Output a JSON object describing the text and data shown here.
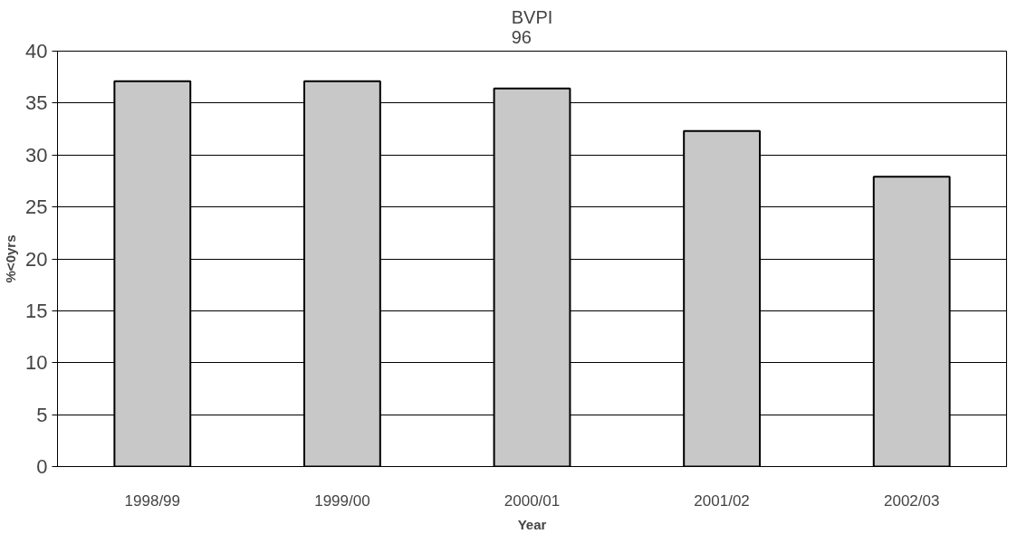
{
  "chart_data": {
    "type": "bar",
    "title": "BVPI\n96",
    "xlabel": "Year",
    "ylabel": "%<0yrs",
    "categories": [
      "1998/99",
      "1999/00",
      "2000/01",
      "2001/02",
      "2002/03"
    ],
    "values": [
      37.1,
      37.1,
      36.4,
      32.3,
      27.9
    ],
    "color": "#c8c8c8",
    "ylim": [
      0,
      40
    ],
    "yticks": [
      0,
      5,
      10,
      15,
      20,
      25,
      30,
      35,
      40
    ],
    "grid": "y"
  }
}
